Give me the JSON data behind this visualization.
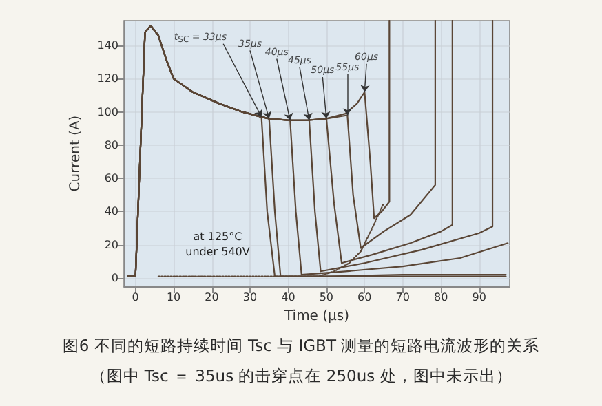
{
  "chart_data": {
    "type": "line",
    "title": "图6 不同的短路持续时间 Tsc 与 IGBT 测量的短路电流波形的关系",
    "subtitle": "（图中 Tsc ＝ 35us 的击穿点在 250us 处，图中未示出）",
    "xlabel": "Time (μs)",
    "ylabel": "Current (A)",
    "xlim": [
      -3,
      98
    ],
    "ylim": [
      -5,
      155
    ],
    "xticks": [
      0,
      10,
      20,
      30,
      40,
      50,
      60,
      70,
      80,
      90
    ],
    "yticks": [
      0,
      20,
      40,
      60,
      80,
      100,
      120,
      140
    ],
    "grid": true,
    "marker": "none",
    "line_style": "solid",
    "series": [
      {
        "color": "#5a4636",
        "x": [
          -2,
          0,
          1,
          2.5,
          4,
          6,
          8,
          10,
          15,
          22,
          28,
          33,
          34.5,
          36.5,
          45,
          60,
          75,
          97
        ],
        "values": [
          1,
          1,
          60,
          148,
          152,
          146,
          132,
          120,
          112,
          105,
          100,
          97,
          40,
          1,
          1,
          1,
          1,
          1
        ]
      },
      {
        "color": "#5a4636",
        "x": [
          -2,
          0,
          1,
          2.5,
          4,
          6,
          8,
          10,
          15,
          22,
          28,
          33,
          35,
          36.5,
          38,
          50,
          70,
          97
        ],
        "values": [
          1,
          1,
          60,
          148,
          152,
          146,
          132,
          120,
          112,
          105,
          100,
          97,
          96,
          40,
          1,
          1,
          2,
          2
        ]
      },
      {
        "color": "#5a4636",
        "x": [
          -2,
          0,
          1,
          2.5,
          4,
          6,
          8,
          10,
          15,
          22,
          28,
          33,
          35,
          40.5,
          42,
          43.5,
          55,
          70,
          85,
          97.5
        ],
        "values": [
          1,
          1,
          60,
          148,
          152,
          146,
          132,
          120,
          112,
          105,
          100,
          97,
          96,
          95,
          40,
          2,
          4,
          7,
          12,
          21
        ]
      },
      {
        "color": "#5a4636",
        "x": [
          -2,
          0,
          1,
          2.5,
          4,
          6,
          8,
          10,
          15,
          22,
          28,
          33,
          35,
          40,
          45.5,
          47,
          48.5,
          60,
          75,
          90,
          93.5,
          93.5
        ],
        "values": [
          1,
          1,
          60,
          148,
          152,
          146,
          132,
          120,
          112,
          105,
          100,
          97,
          96,
          95,
          95,
          40,
          4,
          9,
          17,
          27,
          31,
          155
        ]
      },
      {
        "color": "#5a4636",
        "x": [
          -2,
          0,
          1,
          2.5,
          4,
          6,
          8,
          10,
          15,
          22,
          28,
          33,
          35,
          40,
          45,
          50,
          52,
          54,
          62,
          72,
          80,
          83,
          83
        ],
        "values": [
          1,
          1,
          60,
          148,
          152,
          146,
          132,
          120,
          112,
          105,
          100,
          97,
          96,
          95,
          95,
          96,
          45,
          9,
          14,
          21,
          28,
          32,
          155
        ]
      },
      {
        "color": "#5a4636",
        "x": [
          -2,
          0,
          1,
          2.5,
          4,
          6,
          8,
          10,
          15,
          22,
          28,
          33,
          35,
          40,
          45,
          50,
          55.5,
          57,
          59,
          65,
          72,
          78.5,
          78.5
        ],
        "values": [
          1,
          1,
          60,
          148,
          152,
          146,
          132,
          120,
          112,
          105,
          100,
          97,
          96,
          95,
          95,
          96,
          98,
          50,
          18,
          28,
          38,
          56,
          155
        ]
      },
      {
        "color": "#5a4636",
        "x": [
          -2,
          0,
          1,
          2.5,
          4,
          6,
          8,
          10,
          15,
          22,
          28,
          33,
          35,
          40,
          45,
          50,
          55,
          58,
          60,
          61.5,
          62.5,
          64.5,
          66.5,
          66.5
        ],
        "values": [
          1,
          1,
          60,
          148,
          152,
          146,
          132,
          120,
          112,
          105,
          100,
          97,
          96,
          95,
          95,
          96,
          99,
          105,
          112,
          70,
          36,
          40,
          46,
          155
        ]
      },
      {
        "color": "#5a4636",
        "line_style": "dotted",
        "x": [
          6,
          20,
          35,
          48,
          52,
          56,
          59,
          62,
          65
        ],
        "values": [
          1,
          1,
          1,
          1,
          4,
          9,
          16,
          30,
          45
        ]
      }
    ],
    "annotations": [
      {
        "text": "t$_{SC}$ = 33μs",
        "x": 33,
        "y": 97
      },
      {
        "text": "35μs",
        "x": 35,
        "y": 96
      },
      {
        "text": "40μs",
        "x": 40.5,
        "y": 95
      },
      {
        "text": "45μs",
        "x": 45.5,
        "y": 95
      },
      {
        "text": "50μs",
        "x": 50,
        "y": 96
      },
      {
        "text": "55μs",
        "x": 55.5,
        "y": 98
      },
      {
        "text": "60μs",
        "x": 60,
        "y": 112
      },
      "at 125°C",
      "under 540V"
    ]
  }
}
